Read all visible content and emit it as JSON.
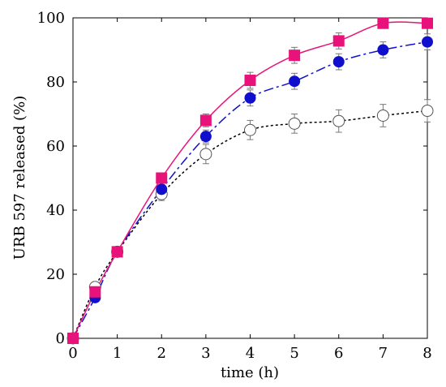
{
  "chart_data": {
    "type": "line",
    "xlabel": "time (h)",
    "ylabel": "URB 597 released (%)",
    "xlim": [
      0,
      8
    ],
    "ylim": [
      0,
      100
    ],
    "xticks": [
      0,
      1,
      2,
      3,
      4,
      5,
      6,
      7,
      8
    ],
    "yticks": [
      0,
      20,
      40,
      60,
      80,
      100
    ],
    "grid": false,
    "series": [
      {
        "marker": "circle-open",
        "color": "#555555",
        "line_style": "dotted",
        "x": [
          0,
          0.5,
          1,
          2,
          3,
          4,
          5,
          6,
          7,
          8
        ],
        "y": [
          0,
          16,
          27,
          45,
          57.5,
          65,
          67,
          67.8,
          69.5,
          71
        ],
        "err": [
          0,
          1.5,
          1,
          2,
          3,
          3,
          3,
          3.5,
          3.5,
          3.5
        ]
      },
      {
        "marker": "circle-filled",
        "color": "#1010cc",
        "line_style": "dashdot",
        "x": [
          0,
          0.5,
          1,
          2,
          3,
          4,
          5,
          6,
          7,
          8
        ],
        "y": [
          0,
          12.7,
          27,
          46.5,
          63,
          75,
          80.2,
          86.3,
          90,
          92.5
        ],
        "err": [
          0,
          1,
          1,
          1.5,
          2,
          2.5,
          2.5,
          2.5,
          2.5,
          2.5
        ]
      },
      {
        "marker": "square-filled",
        "color": "#e8137a",
        "line_style": "solid",
        "x": [
          0,
          0.5,
          1,
          2,
          3,
          4,
          5,
          6,
          7,
          8
        ],
        "y": [
          0,
          14.5,
          27,
          50,
          68,
          80.5,
          88.3,
          92.8,
          98.3,
          98.3
        ],
        "err": [
          0,
          1,
          1,
          1.5,
          2,
          2.5,
          2.5,
          2.5,
          1.5,
          1.5
        ]
      }
    ]
  }
}
